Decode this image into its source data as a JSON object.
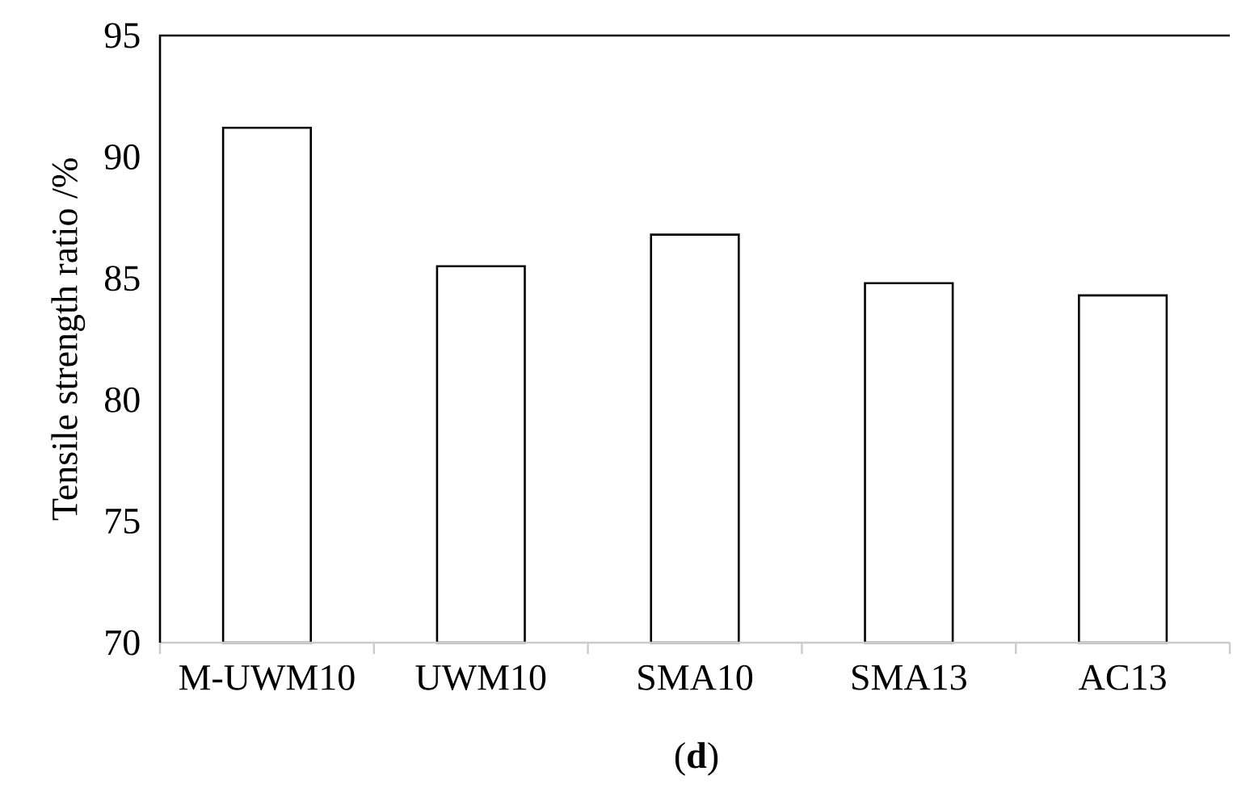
{
  "chart_data": {
    "type": "bar",
    "ylabel": "Tensile strength ratio /%",
    "categories": [
      "M-UWM10",
      "UWM10",
      "SMA10",
      "SMA13",
      "AC13"
    ],
    "values": [
      91.2,
      85.5,
      86.8,
      84.8,
      84.3
    ],
    "color": "#ffffff",
    "ylim": [
      70,
      95
    ],
    "yticks": [
      70,
      75,
      80,
      85,
      90,
      95
    ],
    "annotations": [
      "(**d**)"
    ]
  }
}
